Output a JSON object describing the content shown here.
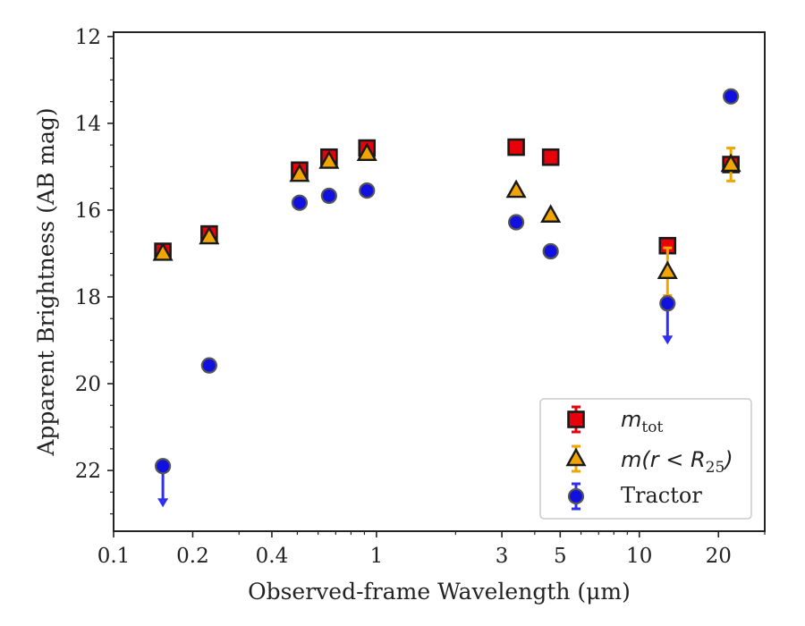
{
  "chart_data": {
    "type": "scatter",
    "title": "",
    "xlabel": "Observed-frame Wavelength (μm)",
    "ylabel": "Apparent Brightness (AB mag)",
    "xscale": "log",
    "xlim": [
      0.1,
      30
    ],
    "ylim": [
      23.4,
      11.9
    ],
    "y_inverted": true,
    "xticks": [
      0.1,
      0.2,
      0.4,
      1,
      3,
      5,
      10,
      20
    ],
    "xtick_labels": [
      "0.1",
      "0.2",
      "0.4",
      "1",
      "3",
      "5",
      "10",
      "20"
    ],
    "yticks": [
      12,
      14,
      16,
      18,
      20,
      22
    ],
    "ytick_labels": [
      "12",
      "14",
      "16",
      "18",
      "20",
      "22"
    ],
    "grid": false,
    "legend_position": "lower-right",
    "series": [
      {
        "name": "m_tot",
        "legend_main": "m",
        "legend_sub": "tot",
        "marker": "square",
        "color": "#e8000b",
        "error_color": "#e8000b",
        "x": [
          0.154,
          0.231,
          0.51,
          0.66,
          0.92,
          3.4,
          4.6,
          12.8,
          22.3
        ],
        "y": [
          16.95,
          16.55,
          15.08,
          14.78,
          14.57,
          14.55,
          14.78,
          16.82,
          14.95
        ],
        "yerr": [
          0.1,
          0.1,
          0.1,
          0.1,
          0.1,
          0.05,
          0.05,
          0.1,
          0.1
        ]
      },
      {
        "name": "m(r < R_25)",
        "legend_main": "m(r < R",
        "legend_sub": "25",
        "legend_close": ")",
        "marker": "triangle",
        "color": "#f0a500",
        "error_color": "#f0a500",
        "x": [
          0.154,
          0.231,
          0.51,
          0.66,
          0.92,
          3.4,
          4.6,
          12.8,
          22.3
        ],
        "y": [
          17.0,
          16.62,
          15.18,
          14.88,
          14.7,
          15.55,
          16.12,
          17.42,
          14.95
        ],
        "yerr": [
          0.05,
          0.05,
          0.05,
          0.05,
          0.05,
          0.03,
          0.03,
          0.55,
          0.38
        ]
      },
      {
        "name": "Tractor",
        "marker": "circle",
        "color": "#1010e0",
        "error_color": "#2e2ef5",
        "x": [
          0.154,
          0.231,
          0.51,
          0.66,
          0.92,
          3.4,
          4.6,
          12.8,
          22.3
        ],
        "y": [
          21.9,
          19.58,
          15.83,
          15.67,
          15.55,
          16.28,
          16.95,
          18.15,
          13.38
        ],
        "yerr": [
          0.05,
          0.05,
          0.05,
          0.05,
          0.05,
          0.03,
          0.03,
          0.05,
          0.05
        ],
        "upper_limits": [
          true,
          false,
          false,
          false,
          false,
          false,
          false,
          true,
          false
        ]
      }
    ]
  }
}
